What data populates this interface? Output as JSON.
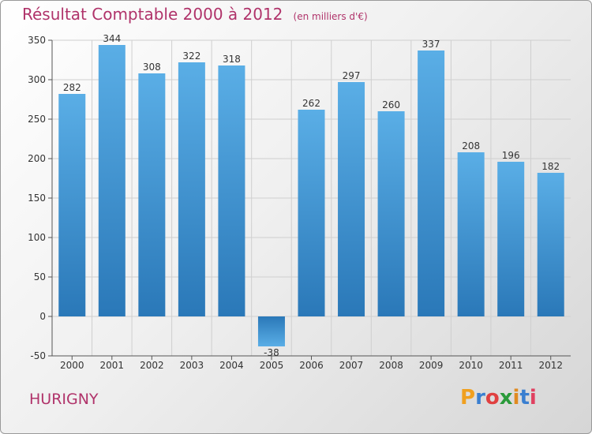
{
  "chart_data": {
    "type": "bar",
    "title": "Résultat Comptable 2000 à 2012",
    "subtitle": "(en milliers d'€)",
    "categories": [
      "2000",
      "2001",
      "2002",
      "2003",
      "2004",
      "2005",
      "2006",
      "2007",
      "2008",
      "2009",
      "2010",
      "2011",
      "2012"
    ],
    "values": [
      282,
      344,
      308,
      322,
      318,
      -38,
      262,
      297,
      260,
      337,
      208,
      196,
      182
    ],
    "ylim": [
      -50,
      350
    ],
    "yticks": [
      -50,
      0,
      50,
      100,
      150,
      200,
      250,
      300,
      350
    ],
    "grid": true,
    "xlabel": "",
    "ylabel": ""
  },
  "footer": {
    "commune": "HURIGNY",
    "logo_letters": [
      "P",
      "r",
      "o",
      "x",
      "i",
      "t",
      "i"
    ],
    "logo_colors": [
      "#f0a020",
      "#3a7fd0",
      "#e04040",
      "#2a9a3a",
      "#e08a20",
      "#3a7fd0",
      "#e04060"
    ]
  },
  "colors": {
    "title": "#b0336a",
    "bar_top": "#5aaee6",
    "bar_bottom": "#2a78b8",
    "grid": "#cfcfcf"
  }
}
